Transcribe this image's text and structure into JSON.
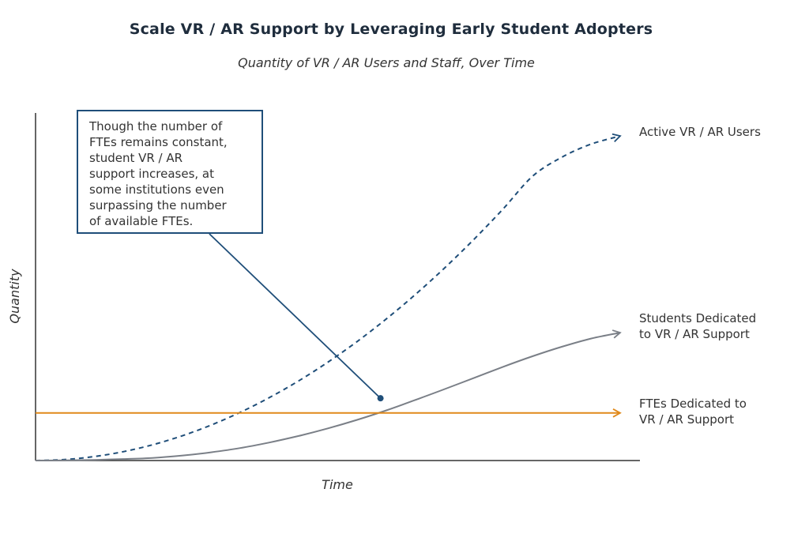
{
  "chart_data": {
    "type": "line",
    "title": "Scale VR / AR Support by Leveraging Early Student Adopters",
    "subtitle": "Quantity of VR / AR Users and Staff, Over Time",
    "xlabel": "Time",
    "ylabel": "Quantity",
    "x": [
      0,
      0.05,
      0.1,
      0.15,
      0.2,
      0.25,
      0.3,
      0.35,
      0.4,
      0.45,
      0.5,
      0.55,
      0.6,
      0.65,
      0.7,
      0.75,
      0.8,
      0.85,
      0.9,
      0.95,
      1.0
    ],
    "xlim": [
      0,
      1
    ],
    "ylim": [
      0,
      1
    ],
    "grid": false,
    "series": [
      {
        "name": "Active VR / AR Users",
        "style": "dashed",
        "color": "#1f4e79",
        "values": [
          0.0,
          0.003,
          0.012,
          0.027,
          0.048,
          0.075,
          0.108,
          0.147,
          0.192,
          0.243,
          0.3,
          0.363,
          0.432,
          0.507,
          0.588,
          0.675,
          0.768,
          0.867,
          0.925,
          0.965,
          0.99
        ]
      },
      {
        "name": "Students Dedicated to VR / AR Support",
        "style": "solid",
        "color": "#7a7f87",
        "values": [
          0.0,
          0.0005,
          0.002,
          0.0045,
          0.008,
          0.015,
          0.025,
          0.038,
          0.055,
          0.075,
          0.098,
          0.124,
          0.153,
          0.185,
          0.218,
          0.252,
          0.286,
          0.318,
          0.347,
          0.372,
          0.39
        ]
      },
      {
        "name": "FTEs Dedicated to VR / AR Support",
        "style": "solid",
        "color": "#e0891a",
        "values": [
          0.145,
          0.145,
          0.145,
          0.145,
          0.145,
          0.145,
          0.145,
          0.145,
          0.145,
          0.145,
          0.145,
          0.145,
          0.145,
          0.145,
          0.145,
          0.145,
          0.145,
          0.145,
          0.145,
          0.145,
          0.145
        ]
      }
    ],
    "series_labels": [
      [
        "Active VR / AR Users"
      ],
      [
        "Students Dedicated",
        "to VR / AR Support"
      ],
      [
        "FTEs Dedicated to",
        "VR / AR Support"
      ]
    ],
    "annotation": {
      "text": "Though the number of FTEs remains constant, student VR / AR support increases, at some institutions even surpassing the number of available FTEs.",
      "lines": [
        "Though the number of",
        "FTEs remains constant,",
        "student VR / AR",
        "support increases, at",
        "some institutions even",
        "surpassing the number",
        "of available FTEs."
      ],
      "target_x": 0.59,
      "target_y": 0.19
    },
    "colors": {
      "title": "#1f2d3d",
      "axis": "#333333",
      "callout_border": "#1f4e79"
    }
  }
}
